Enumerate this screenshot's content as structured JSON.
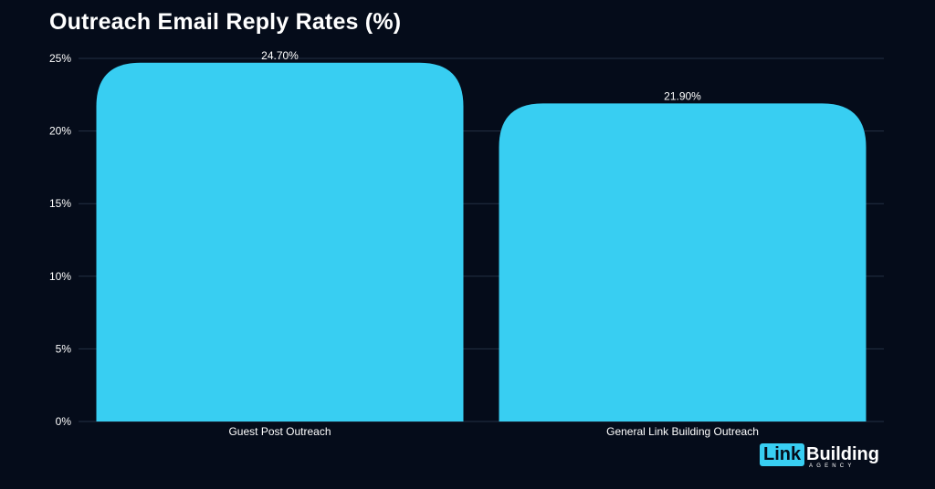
{
  "chart_data": {
    "type": "bar",
    "title": "Outreach Email Reply Rates (%)",
    "categories": [
      "Guest Post Outreach",
      "General Link Building Outreach"
    ],
    "values": [
      24.7,
      21.9
    ],
    "value_labels": [
      "24.70%",
      "21.90%"
    ],
    "ylim": [
      0,
      25
    ],
    "yticks": [
      0,
      5,
      10,
      15,
      20,
      25
    ],
    "ytick_labels": [
      "0%",
      "5%",
      "10%",
      "15%",
      "20%",
      "25%"
    ],
    "xlabel": "",
    "ylabel": "",
    "grid": true,
    "bar_color": "#38cef2",
    "grid_color": "#243044",
    "background_color": "#050c1a"
  },
  "branding": {
    "logo_highlight": "Link",
    "logo_word": "Building",
    "logo_sub": "AGENCY"
  }
}
